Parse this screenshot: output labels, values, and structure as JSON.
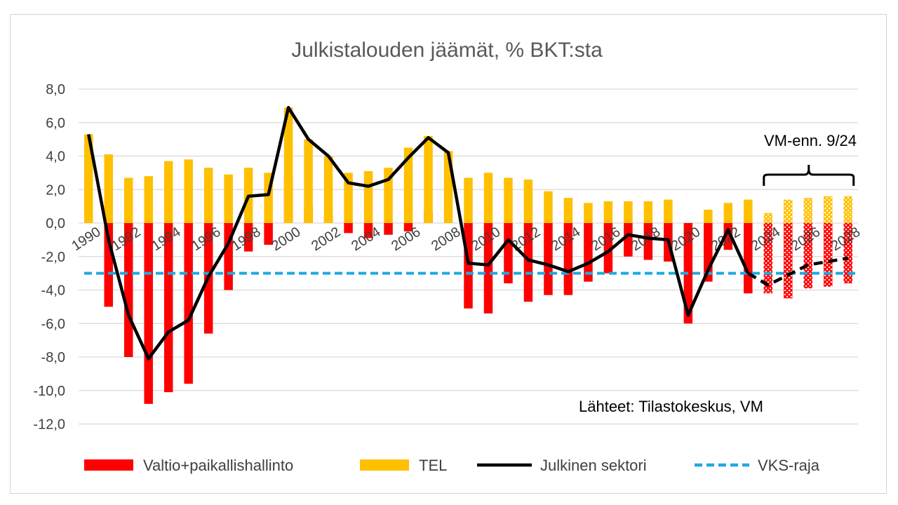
{
  "chart_data": {
    "type": "bar+line",
    "title": "Julkistalouden jäämät, % BKT:sta",
    "ylim": [
      -12,
      8
    ],
    "yticks": [
      8,
      6,
      4,
      2,
      0,
      -2,
      -4,
      -6,
      -8,
      -10,
      -12
    ],
    "ytick_labels": [
      "8,0",
      "6,0",
      "4,0",
      "2,0",
      "0,0",
      "-2,0",
      "-4,0",
      "-6,0",
      "-8,0",
      "-10,0",
      "-12,0"
    ],
    "years": [
      1990,
      1991,
      1992,
      1993,
      1994,
      1995,
      1996,
      1997,
      1998,
      1999,
      2000,
      2001,
      2002,
      2003,
      2004,
      2005,
      2006,
      2007,
      2008,
      2009,
      2010,
      2011,
      2012,
      2013,
      2014,
      2015,
      2016,
      2017,
      2018,
      2019,
      2020,
      2021,
      2022,
      2023,
      2024,
      2025,
      2026,
      2027,
      2028
    ],
    "xtick_labels": [
      "1990",
      "1992",
      "1994",
      "1996",
      "1998",
      "2000",
      "2002",
      "2004",
      "2006",
      "2008",
      "2010",
      "2012",
      "2014",
      "2016",
      "2018",
      "2020",
      "2022",
      "2024",
      "2026",
      "2028"
    ],
    "forecast_start": 2024,
    "series": [
      {
        "name": "Valtio+paikallishallinto",
        "type": "bar",
        "color": "#ff0000",
        "values": [
          1.1,
          -5.0,
          -8.0,
          -10.8,
          -10.1,
          -9.6,
          -6.6,
          -4.0,
          -1.7,
          -1.3,
          2.8,
          1.0,
          0.5,
          -0.6,
          -0.9,
          -0.7,
          -0.5,
          0.7,
          0.0,
          -5.1,
          -5.4,
          -3.6,
          -4.7,
          -4.3,
          -4.3,
          -3.5,
          -3.0,
          -2.0,
          -2.2,
          -2.3,
          -6.0,
          -3.5,
          -1.6,
          -4.2,
          -4.2,
          -4.5,
          -3.9,
          -3.8,
          -3.6
        ]
      },
      {
        "name": "TEL",
        "type": "bar",
        "color": "#ffc000",
        "values": [
          5.3,
          4.1,
          2.7,
          2.8,
          3.7,
          3.8,
          3.3,
          2.9,
          3.3,
          3.0,
          6.9,
          5.0,
          4.0,
          3.0,
          3.1,
          3.3,
          4.5,
          5.2,
          4.3,
          2.7,
          3.0,
          2.7,
          2.6,
          1.9,
          1.5,
          1.2,
          1.3,
          1.3,
          1.3,
          1.4,
          0.0,
          0.8,
          1.2,
          1.4,
          0.6,
          1.4,
          1.5,
          1.6,
          1.6
        ]
      },
      {
        "name": "Julkinen sektori",
        "type": "line",
        "color": "#000000",
        "values": [
          5.3,
          -1.0,
          -5.5,
          -8.1,
          -6.5,
          -5.8,
          -3.2,
          -1.2,
          1.6,
          1.7,
          6.9,
          5.0,
          4.0,
          2.4,
          2.2,
          2.6,
          3.9,
          5.1,
          4.2,
          -2.4,
          -2.5,
          -1.0,
          -2.2,
          -2.5,
          -2.9,
          -2.4,
          -1.7,
          -0.7,
          -0.9,
          -1.0,
          -5.5,
          -2.8,
          -0.4,
          -3.0,
          -3.7,
          -3.1,
          -2.5,
          -2.3,
          -2.1
        ]
      },
      {
        "name": "VKS-raja",
        "type": "line",
        "color": "#1fa9e1",
        "value": -3.0
      }
    ],
    "annotations": {
      "forecast_label": "VM-enn. 9/24",
      "source": "Lähteet: Tilastokeskus, VM"
    },
    "legend_position": "bottom"
  }
}
